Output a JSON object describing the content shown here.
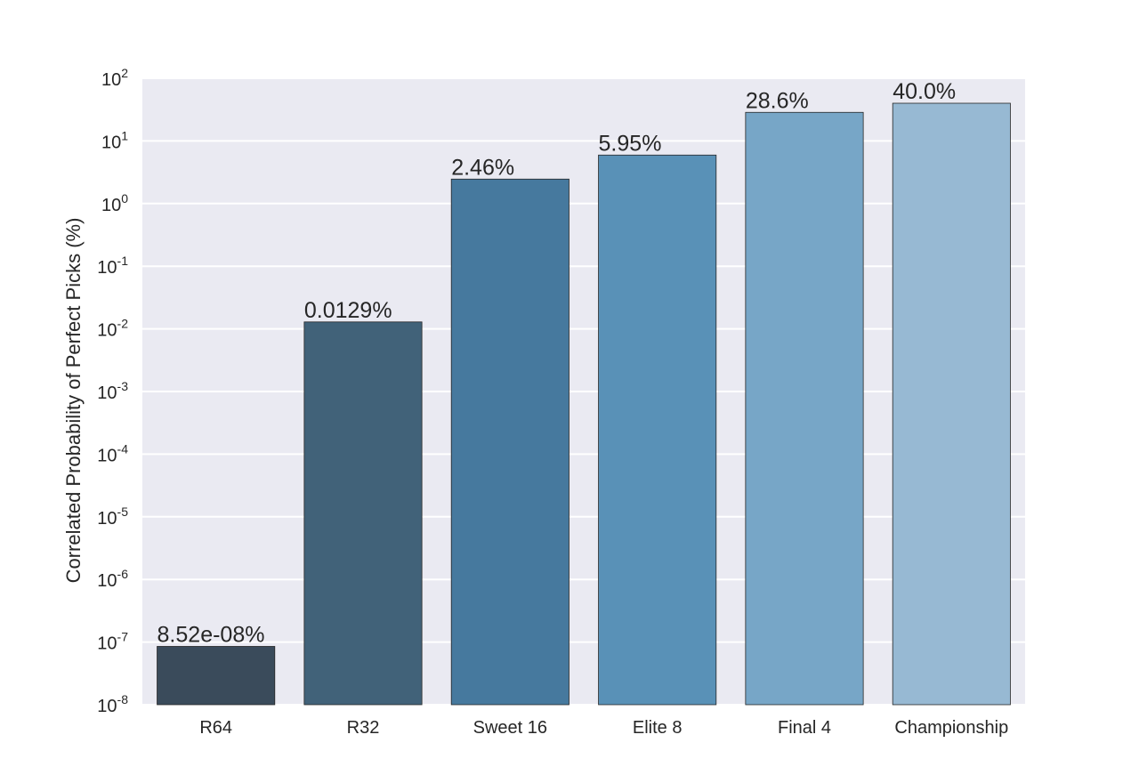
{
  "chart_data": {
    "type": "bar",
    "title": "",
    "xlabel": "",
    "ylabel": "Correlated Probability of Perfect Picks (%)",
    "yscale": "log",
    "ylim": [
      1e-08,
      100
    ],
    "grid": true,
    "categories": [
      "R64",
      "R32",
      "Sweet 16",
      "Elite 8",
      "Final 4",
      "Championship"
    ],
    "values": [
      8.52e-08,
      0.0129,
      2.46,
      5.95,
      28.6,
      40.0
    ],
    "bar_labels": [
      "8.52e-08%",
      "0.0129%",
      "2.46%",
      "5.95%",
      "28.6%",
      "40.0%"
    ],
    "bar_colors": [
      "#3a4b5b",
      "#416279",
      "#46799e",
      "#5991b7",
      "#77a6c7",
      "#97b9d3"
    ],
    "y_ticks": [
      {
        "value": 100,
        "base": "10",
        "exp": "2"
      },
      {
        "value": 10,
        "base": "10",
        "exp": "1"
      },
      {
        "value": 1,
        "base": "10",
        "exp": "0"
      },
      {
        "value": 0.1,
        "base": "10",
        "exp": "-1"
      },
      {
        "value": 0.01,
        "base": "10",
        "exp": "-2"
      },
      {
        "value": 0.001,
        "base": "10",
        "exp": "-3"
      },
      {
        "value": 0.0001,
        "base": "10",
        "exp": "-4"
      },
      {
        "value": 1e-05,
        "base": "10",
        "exp": "-5"
      },
      {
        "value": 1e-06,
        "base": "10",
        "exp": "-6"
      },
      {
        "value": 1e-07,
        "base": "10",
        "exp": "-7"
      },
      {
        "value": 1e-08,
        "base": "10",
        "exp": "-8"
      }
    ],
    "colors": {
      "plot_background": "#eaeaf2",
      "grid": "#ffffff",
      "bar_edge": "#262626"
    }
  }
}
